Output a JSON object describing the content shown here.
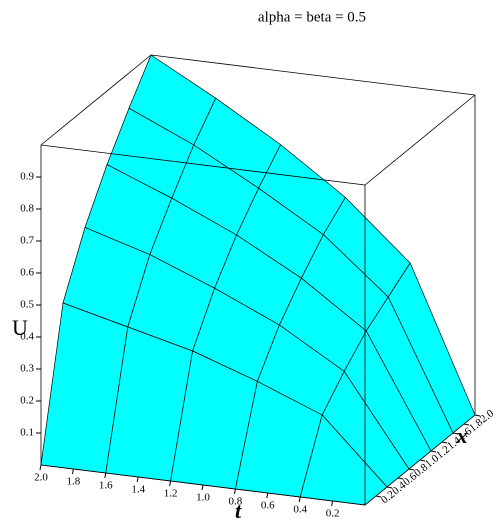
{
  "chart_data": {
    "type": "surface",
    "title": "alpha = beta = 0.5",
    "t_label": "t",
    "x_label": "x",
    "z_label": "U",
    "t": [
      0,
      0.4,
      0.8,
      1.2,
      1.6,
      2
    ],
    "x": [
      0,
      0.4,
      0.8,
      1.2,
      1.6,
      2
    ],
    "z": [
      [
        0,
        0,
        0,
        0,
        0,
        0
      ],
      [
        0,
        0.2,
        0.28,
        0.35,
        0.4,
        0.45
      ],
      [
        0,
        0.28,
        0.4,
        0.49,
        0.57,
        0.63
      ],
      [
        0,
        0.35,
        0.49,
        0.6,
        0.69,
        0.77
      ],
      [
        0,
        0.4,
        0.57,
        0.69,
        0.8,
        0.89
      ],
      [
        0,
        0.45,
        0.63,
        0.77,
        0.89,
        1
      ]
    ],
    "color": "#00ffff",
    "tlim": [
      0,
      2
    ],
    "xlim": [
      0,
      2
    ],
    "zlim": [
      0,
      1
    ],
    "tticks": [
      0.2,
      0.4,
      0.6,
      0.8,
      {
        "value": 1,
        "label": "1.0"
      },
      1.2,
      1.4,
      1.6,
      1.8,
      {
        "value": 2,
        "label": "2.0"
      }
    ],
    "xticks": [
      0.2,
      0.4,
      0.6,
      0.8,
      {
        "value": 1,
        "label": "1.0"
      },
      1.2,
      1.4,
      1.6,
      1.8,
      {
        "value": 2,
        "label": "2.0"
      }
    ],
    "zticks": [
      0.1,
      0.2,
      0.3,
      0.4,
      0.5,
      0.6,
      0.7,
      0.8,
      0.9
    ]
  }
}
